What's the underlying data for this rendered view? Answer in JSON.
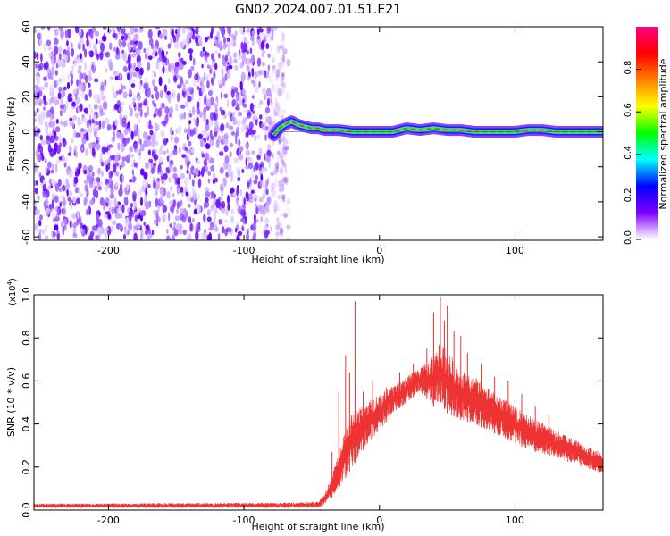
{
  "title": "GN02.2024.007.01.51.E21",
  "chart_data": [
    {
      "type": "heatmap",
      "xlabel": "Height of straight line (km)",
      "ylabel": "Frequency (Hz)",
      "xlim": [
        -255,
        165
      ],
      "ylim": [
        -62,
        60
      ],
      "x_ticks": [
        -200,
        -100,
        0,
        100
      ],
      "y_ticks": [
        -60,
        -40,
        -20,
        0,
        20,
        40,
        60
      ],
      "noise_region_x": [
        -255,
        -67
      ],
      "signal_ridge": [
        [
          -78,
          -2
        ],
        [
          -74,
          2
        ],
        [
          -70,
          4
        ],
        [
          -65,
          6
        ],
        [
          -60,
          4
        ],
        [
          -55,
          3
        ],
        [
          -50,
          2
        ],
        [
          -45,
          2
        ],
        [
          -40,
          1
        ],
        [
          -30,
          1
        ],
        [
          -20,
          0
        ],
        [
          -10,
          0
        ],
        [
          0,
          0
        ],
        [
          10,
          0
        ],
        [
          15,
          1
        ],
        [
          20,
          2
        ],
        [
          30,
          1
        ],
        [
          40,
          2
        ],
        [
          50,
          1
        ],
        [
          60,
          1
        ],
        [
          70,
          0
        ],
        [
          80,
          0
        ],
        [
          90,
          0
        ],
        [
          100,
          0
        ],
        [
          110,
          1
        ],
        [
          120,
          1
        ],
        [
          130,
          0
        ],
        [
          140,
          0
        ],
        [
          150,
          0
        ],
        [
          160,
          0
        ],
        [
          165,
          0
        ]
      ],
      "colorbar": {
        "label": "Normalized spectral amplitude",
        "range": [
          0,
          1
        ],
        "ticks": [
          "0.0",
          "0.2",
          "0.4",
          "0.6",
          "0.8"
        ],
        "colors": [
          "#ffffff",
          "#8000ff",
          "#0000ff",
          "#00ffff",
          "#00ff00",
          "#ffff00",
          "#ff8000",
          "#ff0000",
          "#ff0080"
        ]
      }
    },
    {
      "type": "line",
      "xlabel": "Height of straight line (km)",
      "ylabel": "SNR (10 * v/v)",
      "y_multiplier": "(x10",
      "y_multiplier_exp": "4",
      "xlim": [
        -255,
        165
      ],
      "ylim": [
        0,
        1
      ],
      "x_ticks": [
        -200,
        -100,
        0,
        100
      ],
      "y_ticks": [
        "0.0",
        "0.2",
        "0.4",
        "0.6",
        "0.8",
        "1.0"
      ],
      "color": "#ee3333",
      "envelope": {
        "x": [
          -255,
          -60,
          -45,
          -40,
          -35,
          -30,
          -25,
          -20,
          -15,
          -10,
          0,
          10,
          20,
          30,
          40,
          45,
          50,
          60,
          70,
          80,
          90,
          100,
          110,
          120,
          130,
          140,
          150,
          160,
          165
        ],
        "low": [
          0.01,
          0.01,
          0.01,
          0.02,
          0.06,
          0.1,
          0.15,
          0.2,
          0.25,
          0.3,
          0.37,
          0.45,
          0.5,
          0.55,
          0.48,
          0.5,
          0.45,
          0.42,
          0.4,
          0.37,
          0.34,
          0.31,
          0.28,
          0.26,
          0.24,
          0.22,
          0.2,
          0.18,
          0.17
        ],
        "high": [
          0.03,
          0.035,
          0.04,
          0.08,
          0.16,
          0.27,
          0.38,
          0.45,
          0.48,
          0.5,
          0.54,
          0.58,
          0.62,
          0.66,
          0.72,
          0.78,
          0.74,
          0.66,
          0.62,
          0.57,
          0.53,
          0.48,
          0.44,
          0.41,
          0.37,
          0.34,
          0.31,
          0.28,
          0.26
        ]
      },
      "spikes": [
        [
          -35,
          0.27
        ],
        [
          -30,
          0.55
        ],
        [
          -25,
          0.72
        ],
        [
          -22,
          0.64
        ],
        [
          -18,
          0.97
        ],
        [
          -12,
          0.55
        ],
        [
          -5,
          0.6
        ],
        [
          5,
          0.57
        ],
        [
          15,
          0.64
        ],
        [
          25,
          0.68
        ],
        [
          35,
          0.75
        ],
        [
          40,
          0.92
        ],
        [
          45,
          0.99
        ],
        [
          48,
          0.88
        ],
        [
          50,
          0.95
        ],
        [
          55,
          0.83
        ],
        [
          60,
          0.81
        ],
        [
          65,
          0.73
        ],
        [
          75,
          0.68
        ],
        [
          85,
          0.62
        ],
        [
          95,
          0.6
        ],
        [
          105,
          0.54
        ],
        [
          115,
          0.48
        ],
        [
          125,
          0.44
        ]
      ]
    }
  ]
}
